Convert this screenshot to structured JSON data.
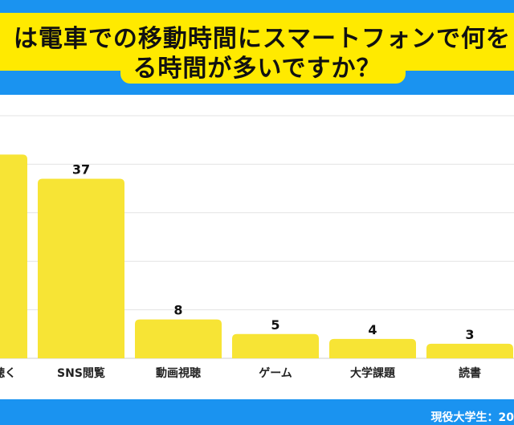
{
  "chart_data": {
    "type": "bar",
    "title": [
      "は電車での移動時間にスマートフォンで何を",
      "る時間が多いですか？"
    ],
    "categories": [
      "聴く",
      "SNS閲覧",
      "動画視聴",
      "ゲーム",
      "大学課題",
      "読書"
    ],
    "values": [
      42,
      37,
      8,
      5,
      4,
      3
    ],
    "value_labels": [
      "",
      "37",
      "8",
      "5",
      "4",
      "3"
    ],
    "ylim": [
      0,
      50
    ],
    "grid": true,
    "bar_color": "#f7e435"
  },
  "footer": "現役大学生：20",
  "colors": {
    "blue": "#1a93f0",
    "yellow": "#ffea00"
  }
}
